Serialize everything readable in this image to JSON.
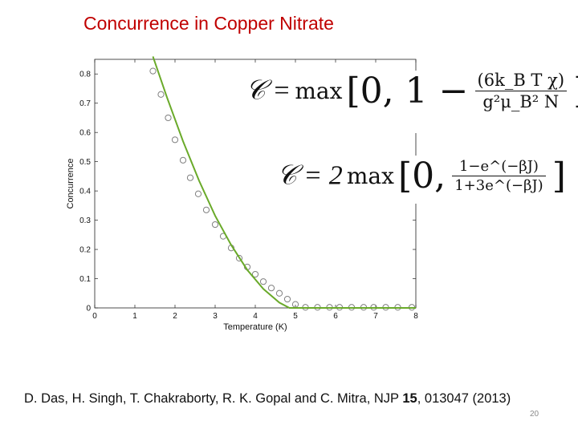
{
  "slide": {
    "title": "Concurrence in Copper Nitrate",
    "slide_number": "20"
  },
  "formulas": {
    "f1": {
      "lhs": "𝒞 =",
      "func": "max",
      "open": "[0, 1 −",
      "numerator": "(6k_B T χ)",
      "denominator": "g²μ_B² N",
      "close": "]"
    },
    "f2": {
      "lhs": "𝒞 = 2",
      "func": "max",
      "open": "[0,",
      "numerator": "1−e^(−βJ)",
      "denominator": "1+3e^(−βJ)",
      "close": "]"
    }
  },
  "citation": {
    "authors": "D. Das, H. Singh, T. Chakraborty, R. K. Gopal and C. Mitra, NJP ",
    "volume": "15",
    "rest": ", 013047 (2013)"
  },
  "colors": {
    "title": "#c00000",
    "fit_line": "#6aaa2a",
    "markers": "#808080"
  },
  "chart_data": {
    "type": "scatter",
    "xlabel": "Temperature (K)",
    "ylabel": "Concurrence",
    "xlim": [
      0,
      8
    ],
    "ylim": [
      0,
      0.85
    ],
    "xticks": [
      0,
      1,
      2,
      3,
      4,
      5,
      6,
      7,
      8
    ],
    "yticks": [
      0,
      0.1,
      0.2,
      0.3,
      0.4,
      0.5,
      0.6,
      0.7,
      0.8
    ],
    "grid": false,
    "series": [
      {
        "kind": "scatter",
        "marker": "open-circle",
        "x": [
          1.45,
          1.65,
          1.83,
          2.0,
          2.2,
          2.38,
          2.58,
          2.78,
          3.0,
          3.2,
          3.4,
          3.6,
          3.8,
          4.0,
          4.2,
          4.4,
          4.6,
          4.8,
          5.0,
          5.25,
          5.55,
          5.85,
          6.1,
          6.4,
          6.7,
          6.95,
          7.25,
          7.55,
          7.9
        ],
        "y": [
          0.81,
          0.73,
          0.65,
          0.575,
          0.505,
          0.445,
          0.39,
          0.335,
          0.285,
          0.245,
          0.205,
          0.17,
          0.14,
          0.115,
          0.09,
          0.068,
          0.05,
          0.03,
          0.012,
          0.002,
          0.002,
          0.002,
          0.002,
          0.002,
          0.002,
          0.002,
          0.002,
          0.002,
          0.002
        ]
      },
      {
        "kind": "line",
        "x": [
          1.45,
          1.8,
          2.2,
          2.6,
          3.0,
          3.4,
          3.8,
          4.2,
          4.6,
          4.85,
          5.0,
          6.0,
          7.0,
          8.0
        ],
        "y": [
          0.86,
          0.72,
          0.57,
          0.435,
          0.315,
          0.215,
          0.13,
          0.065,
          0.018,
          0.0,
          0.0,
          0.0,
          0.0,
          0.0
        ]
      }
    ]
  }
}
